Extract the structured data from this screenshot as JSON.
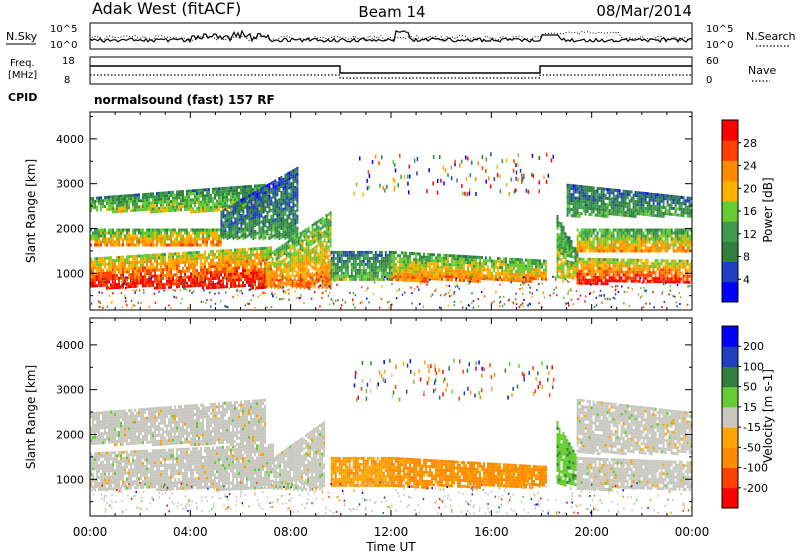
{
  "header": {
    "station": "Adak West (fitACF)",
    "beam": "Beam 14",
    "date": "08/Mar/2014"
  },
  "top_panels": {
    "nsky_label": "N.Sky",
    "nsky_ticks": [
      "10^5",
      "10^0"
    ],
    "nsearch_label": "N.Search",
    "nsearch_ticks": [
      "10^5",
      "10^0"
    ],
    "freq_label_1": "Freq.",
    "freq_label_2": "[MHz]",
    "freq_ticks": [
      "18",
      "8"
    ],
    "nave_label": "Nave",
    "nave_ticks": [
      "60",
      "0"
    ],
    "cpid_label": "CPID",
    "cpid_text": "normalsound (fast) 157 RF"
  },
  "colors": {
    "power": [
      "#0000ff",
      "#1f3fbf",
      "#2f7f3f",
      "#3c9a4c",
      "#66cc33",
      "#ffb300",
      "#ff8c00",
      "#ff4000",
      "#ff0000"
    ],
    "velocity": [
      "#ff0000",
      "#ff4000",
      "#ff8c00",
      "#ffa500",
      "#c8c8c0",
      "#66cc33",
      "#2f7f3f",
      "#1f3fbf",
      "#0000ff"
    ],
    "ground": "#c8c8c0"
  },
  "chart_data": [
    {
      "type": "heatmap",
      "title": "Power",
      "xlabel": "Time UT",
      "ylabel": "Slant Range [km]",
      "x_ticks": [
        "00:00",
        "04:00",
        "08:00",
        "12:00",
        "16:00",
        "20:00",
        "00:00"
      ],
      "y_ticks": [
        1000,
        2000,
        3000,
        4000
      ],
      "xlim": [
        0,
        24
      ],
      "ylim": [
        180,
        4600
      ],
      "colorbar_label": "Power [dB]",
      "colorbar_ticks": [
        "28",
        "24",
        "20",
        "16",
        "12",
        "8",
        "4"
      ],
      "regions": [
        {
          "t0": 0.0,
          "t1": 7.2,
          "r0": 700,
          "r1_start": 1350,
          "r1_end": 1600,
          "level": 0.95
        },
        {
          "t0": 0.0,
          "t1": 5.2,
          "r0": 1600,
          "r1_start": 2000,
          "r1_end": 2000,
          "level": 0.75
        },
        {
          "t0": 0.0,
          "t1": 7.0,
          "r0": 2400,
          "r1_start": 2700,
          "r1_end": 3000,
          "level": 0.55
        },
        {
          "t0": 5.2,
          "t1": 8.3,
          "r0": 1800,
          "r1_start": 2400,
          "r1_end": 3400,
          "level": 0.35
        },
        {
          "t0": 7.0,
          "t1": 9.6,
          "r0": 700,
          "r1_start": 1400,
          "r1_end": 2400,
          "level": 0.75
        },
        {
          "t0": 9.6,
          "t1": 12.0,
          "r0": 850,
          "r1_start": 1500,
          "r1_end": 1500,
          "level": 0.45
        },
        {
          "t0": 12.0,
          "t1": 18.2,
          "r0": 850,
          "r1_start": 1500,
          "r1_end": 1300,
          "level": 0.72
        },
        {
          "t0": 18.6,
          "t1": 19.4,
          "r0": 900,
          "r1_start": 2300,
          "r1_end": 1500,
          "level": 0.6
        },
        {
          "t0": 19.4,
          "t1": 24.0,
          "r0": 800,
          "r1_start": 1350,
          "r1_end": 1300,
          "level": 0.93
        },
        {
          "t0": 19.4,
          "t1": 24.0,
          "r0": 1500,
          "r1_start": 2000,
          "r1_end": 2000,
          "level": 0.7
        },
        {
          "t0": 19.0,
          "t1": 24.0,
          "r0": 2300,
          "r1_start": 3000,
          "r1_end": 2700,
          "level": 0.4
        }
      ]
    },
    {
      "type": "heatmap",
      "title": "Velocity",
      "xlabel": "Time UT",
      "ylabel": "Slant Range [km]",
      "x_ticks": [
        "00:00",
        "04:00",
        "08:00",
        "12:00",
        "16:00",
        "20:00",
        "00:00"
      ],
      "y_ticks": [
        1000,
        2000,
        3000,
        4000
      ],
      "xlim": [
        0,
        24
      ],
      "ylim": [
        180,
        4600
      ],
      "colorbar_label": "Velocity [m s-1]",
      "colorbar_ticks": [
        "200",
        "100",
        "50",
        "15",
        "-15",
        "-50",
        "-100",
        "-200"
      ],
      "regions": [
        {
          "t0": 0.0,
          "t1": 7.3,
          "r0": 800,
          "r1_start": 1600,
          "r1_end": 1800,
          "level": 0.5
        },
        {
          "t0": 0.0,
          "t1": 7.0,
          "r0": 1800,
          "r1_start": 2500,
          "r1_end": 2800,
          "level": 0.5
        },
        {
          "t0": 7.3,
          "t1": 9.3,
          "r0": 800,
          "r1_start": 1500,
          "r1_end": 2300,
          "level": 0.5
        },
        {
          "t0": 9.6,
          "t1": 12.0,
          "r0": 850,
          "r1_start": 1500,
          "r1_end": 1500,
          "level": 0.35
        },
        {
          "t0": 12.0,
          "t1": 18.2,
          "r0": 850,
          "r1_start": 1500,
          "r1_end": 1300,
          "level": 0.3
        },
        {
          "t0": 18.6,
          "t1": 19.4,
          "r0": 900,
          "r1_start": 2300,
          "r1_end": 1500,
          "level": 0.62
        },
        {
          "t0": 19.4,
          "t1": 24.0,
          "r0": 800,
          "r1_start": 1500,
          "r1_end": 1400,
          "level": 0.5
        },
        {
          "t0": 19.4,
          "t1": 24.0,
          "r0": 1600,
          "r1_start": 2800,
          "r1_end": 2500,
          "level": 0.5
        }
      ]
    }
  ]
}
